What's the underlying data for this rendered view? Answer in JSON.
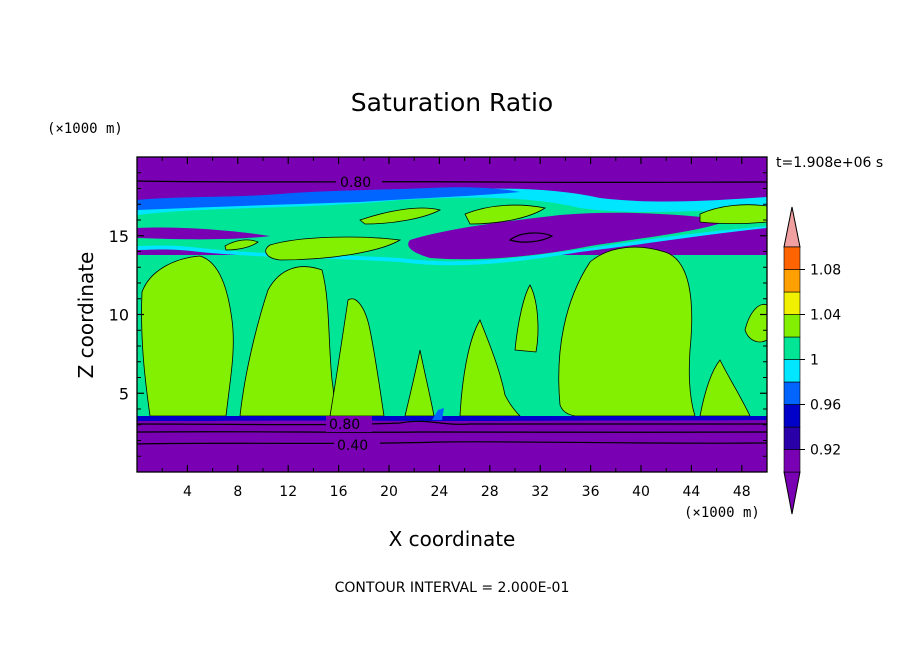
{
  "chart_data": {
    "type": "contour",
    "title": "Saturation Ratio",
    "xlabel": "X coordinate",
    "ylabel": "Z coordinate",
    "x_units": "(×1000 m)",
    "y_units": "(×1000 m)",
    "xlim": [
      0,
      50
    ],
    "ylim": [
      0,
      20
    ],
    "x_ticks": [
      4,
      8,
      12,
      16,
      20,
      24,
      28,
      32,
      36,
      40,
      44,
      48
    ],
    "y_ticks": [
      5,
      10,
      15
    ],
    "time_label": "t=1.908e+06 s",
    "footer": "CONTOUR INTERVAL = 2.000E-01",
    "contour_labels": [
      {
        "text": "0.80",
        "x": 17.5,
        "z": 18.2
      },
      {
        "text": "0.80",
        "x": 16.5,
        "z": 3.1
      },
      {
        "text": "0.40",
        "x": 17.0,
        "z": 1.7
      }
    ],
    "colorbar": {
      "tick_labels": [
        "0.92",
        "0.96",
        "1",
        "1.04",
        "1.08"
      ],
      "levels": [
        0.9,
        0.92,
        0.94,
        0.96,
        0.98,
        1.0,
        1.02,
        1.04,
        1.06,
        1.08,
        1.1
      ],
      "colors": [
        "#7a00b4",
        "#2a00a8",
        "#0000c8",
        "#0064ff",
        "#00e6ff",
        "#00e696",
        "#82f000",
        "#f0f000",
        "#ffa000",
        "#ff6400",
        "#e60000",
        "#f0a0a0"
      ],
      "below_color": "#7a00b4",
      "above_color": "#f0a0a0"
    },
    "layers": {
      "lower_dry": {
        "z_max": 3.2,
        "value": "< 0.90"
      },
      "cloud_layer": {
        "z_min": 3.4,
        "z_max": 13.5,
        "value": "0.98 - 1.02"
      },
      "upper_dry": {
        "z_min": 18.0,
        "value": "< 0.90"
      }
    }
  }
}
